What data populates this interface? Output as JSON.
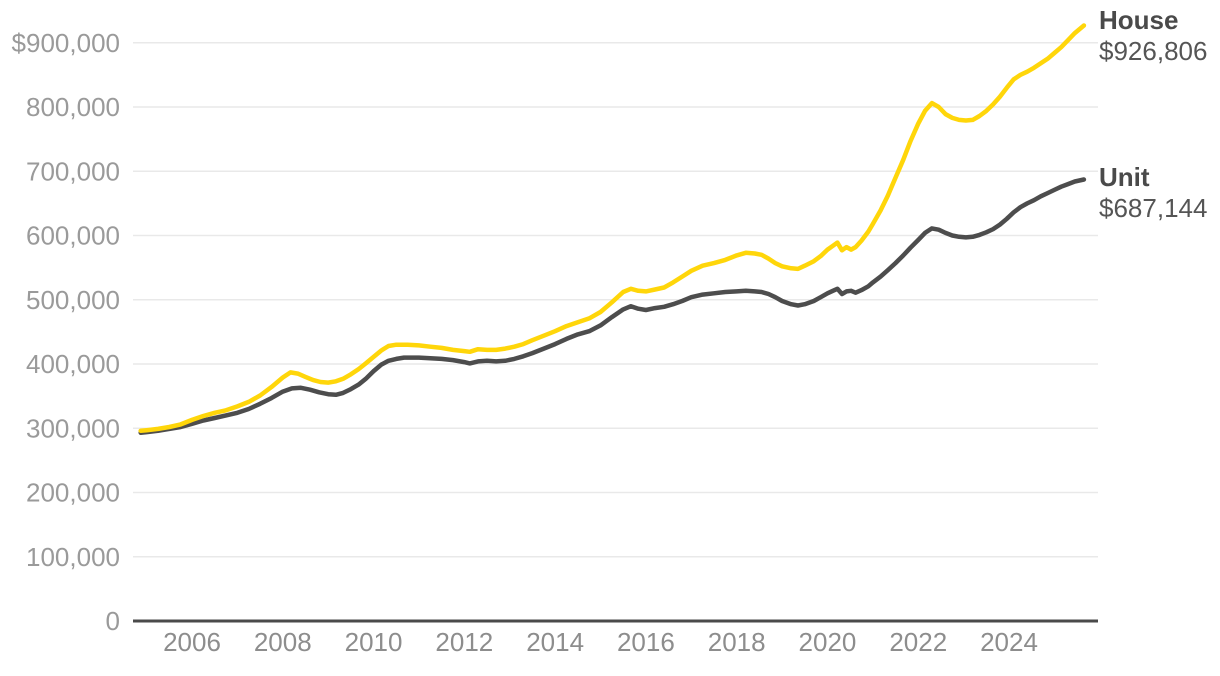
{
  "chart": {
    "colors": {
      "house_line": "#ffd60a",
      "unit_line": "#4d4d4d",
      "gridline": "#e9e9e9",
      "axis_line": "#4a4a4a",
      "y_tick_text": "#9a9a9a",
      "x_tick_text": "#8d8d8d",
      "legend_text": "#4d4d4d",
      "background": "#ffffff"
    },
    "legend": {
      "house_name": "House",
      "house_value": "$926,806",
      "unit_name": "Unit",
      "unit_value": "$687,144"
    }
  },
  "chart_data": {
    "type": "line",
    "title": "",
    "xlabel": "",
    "ylabel": "",
    "grid": "horizontal-only",
    "legend_position": "right-of-line-ends",
    "x_axis": {
      "range": [
        2004.87,
        2025.75
      ],
      "tick_values": [
        2006,
        2008,
        2010,
        2012,
        2014,
        2016,
        2018,
        2020,
        2022,
        2024
      ],
      "tick_labels": [
        "2006",
        "2008",
        "2010",
        "2012",
        "2014",
        "2016",
        "2018",
        "2020",
        "2022",
        "2024"
      ]
    },
    "y_axis": {
      "range": [
        0,
        940000
      ],
      "tick_values": [
        0,
        100000,
        200000,
        300000,
        400000,
        500000,
        600000,
        700000,
        800000,
        900000
      ],
      "tick_labels": [
        "0",
        "100,000",
        "200,000",
        "300,000",
        "400,000",
        "500,000",
        "600,000",
        "700,000",
        "800,000",
        "$900,000"
      ]
    },
    "series": [
      {
        "name": "House",
        "end_label": "$926,806",
        "end_value": 926806,
        "color": "#ffd60a",
        "points": [
          [
            2004.87,
            296000
          ],
          [
            2005.0,
            297000
          ],
          [
            2005.25,
            299000
          ],
          [
            2005.5,
            302000
          ],
          [
            2005.75,
            306000
          ],
          [
            2006.0,
            313000
          ],
          [
            2006.25,
            319000
          ],
          [
            2006.5,
            324000
          ],
          [
            2006.75,
            328000
          ],
          [
            2007.0,
            334000
          ],
          [
            2007.25,
            341000
          ],
          [
            2007.5,
            351000
          ],
          [
            2007.75,
            364000
          ],
          [
            2008.0,
            379000
          ],
          [
            2008.17,
            387000
          ],
          [
            2008.33,
            385000
          ],
          [
            2008.5,
            380000
          ],
          [
            2008.67,
            375000
          ],
          [
            2008.83,
            372000
          ],
          [
            2009.0,
            371000
          ],
          [
            2009.17,
            373000
          ],
          [
            2009.33,
            377000
          ],
          [
            2009.5,
            384000
          ],
          [
            2009.67,
            392000
          ],
          [
            2009.83,
            401000
          ],
          [
            2010.0,
            411000
          ],
          [
            2010.17,
            421000
          ],
          [
            2010.33,
            428000
          ],
          [
            2010.5,
            430000
          ],
          [
            2010.75,
            430000
          ],
          [
            2011.0,
            429000
          ],
          [
            2011.25,
            427000
          ],
          [
            2011.5,
            425000
          ],
          [
            2011.75,
            422000
          ],
          [
            2012.0,
            420000
          ],
          [
            2012.12,
            419000
          ],
          [
            2012.3,
            423000
          ],
          [
            2012.5,
            422000
          ],
          [
            2012.7,
            422000
          ],
          [
            2012.9,
            424000
          ],
          [
            2013.1,
            427000
          ],
          [
            2013.3,
            431000
          ],
          [
            2013.5,
            437000
          ],
          [
            2013.75,
            444000
          ],
          [
            2014.0,
            451000
          ],
          [
            2014.25,
            459000
          ],
          [
            2014.5,
            465000
          ],
          [
            2014.75,
            471000
          ],
          [
            2015.0,
            481000
          ],
          [
            2015.25,
            496000
          ],
          [
            2015.5,
            512000
          ],
          [
            2015.67,
            517000
          ],
          [
            2015.83,
            514000
          ],
          [
            2016.0,
            513000
          ],
          [
            2016.2,
            516000
          ],
          [
            2016.4,
            519000
          ],
          [
            2016.6,
            527000
          ],
          [
            2016.8,
            536000
          ],
          [
            2017.0,
            545000
          ],
          [
            2017.25,
            553000
          ],
          [
            2017.5,
            557000
          ],
          [
            2017.75,
            562000
          ],
          [
            2018.0,
            569000
          ],
          [
            2018.2,
            573000
          ],
          [
            2018.4,
            572000
          ],
          [
            2018.55,
            570000
          ],
          [
            2018.7,
            564000
          ],
          [
            2018.85,
            557000
          ],
          [
            2019.0,
            552000
          ],
          [
            2019.2,
            549000
          ],
          [
            2019.35,
            548000
          ],
          [
            2019.5,
            553000
          ],
          [
            2019.7,
            560000
          ],
          [
            2019.85,
            568000
          ],
          [
            2020.0,
            578000
          ],
          [
            2020.12,
            584000
          ],
          [
            2020.22,
            589000
          ],
          [
            2020.32,
            577000
          ],
          [
            2020.42,
            582000
          ],
          [
            2020.52,
            578000
          ],
          [
            2020.62,
            582000
          ],
          [
            2020.75,
            592000
          ],
          [
            2020.9,
            606000
          ],
          [
            2021.0,
            618000
          ],
          [
            2021.17,
            639000
          ],
          [
            2021.33,
            662000
          ],
          [
            2021.5,
            690000
          ],
          [
            2021.67,
            718000
          ],
          [
            2021.83,
            747000
          ],
          [
            2022.0,
            774000
          ],
          [
            2022.15,
            794000
          ],
          [
            2022.3,
            806000
          ],
          [
            2022.45,
            800000
          ],
          [
            2022.6,
            789000
          ],
          [
            2022.75,
            783000
          ],
          [
            2022.9,
            780000
          ],
          [
            2023.05,
            779000
          ],
          [
            2023.2,
            780000
          ],
          [
            2023.35,
            786000
          ],
          [
            2023.5,
            794000
          ],
          [
            2023.65,
            804000
          ],
          [
            2023.8,
            816000
          ],
          [
            2023.95,
            830000
          ],
          [
            2024.1,
            843000
          ],
          [
            2024.25,
            850000
          ],
          [
            2024.4,
            855000
          ],
          [
            2024.55,
            861000
          ],
          [
            2024.7,
            868000
          ],
          [
            2024.85,
            875000
          ],
          [
            2025.0,
            884000
          ],
          [
            2025.15,
            893000
          ],
          [
            2025.3,
            904000
          ],
          [
            2025.45,
            915000
          ],
          [
            2025.65,
            926806
          ]
        ]
      },
      {
        "name": "Unit",
        "end_label": "$687,144",
        "end_value": 687144,
        "color": "#4d4d4d",
        "points": [
          [
            2004.87,
            293000
          ],
          [
            2005.0,
            294000
          ],
          [
            2005.25,
            296000
          ],
          [
            2005.5,
            299000
          ],
          [
            2005.75,
            302000
          ],
          [
            2006.0,
            307000
          ],
          [
            2006.25,
            312000
          ],
          [
            2006.5,
            316000
          ],
          [
            2006.75,
            320000
          ],
          [
            2007.0,
            324000
          ],
          [
            2007.25,
            330000
          ],
          [
            2007.5,
            338000
          ],
          [
            2007.75,
            347000
          ],
          [
            2008.0,
            357000
          ],
          [
            2008.2,
            362000
          ],
          [
            2008.4,
            363000
          ],
          [
            2008.6,
            360000
          ],
          [
            2008.8,
            356000
          ],
          [
            2009.0,
            353000
          ],
          [
            2009.17,
            352000
          ],
          [
            2009.33,
            355000
          ],
          [
            2009.5,
            361000
          ],
          [
            2009.67,
            368000
          ],
          [
            2009.83,
            377000
          ],
          [
            2010.0,
            389000
          ],
          [
            2010.17,
            399000
          ],
          [
            2010.33,
            405000
          ],
          [
            2010.5,
            408000
          ],
          [
            2010.67,
            410000
          ],
          [
            2010.83,
            410000
          ],
          [
            2011.0,
            410000
          ],
          [
            2011.25,
            409000
          ],
          [
            2011.5,
            408000
          ],
          [
            2011.75,
            406000
          ],
          [
            2012.0,
            403000
          ],
          [
            2012.12,
            401000
          ],
          [
            2012.3,
            404000
          ],
          [
            2012.5,
            405000
          ],
          [
            2012.7,
            404000
          ],
          [
            2012.9,
            405000
          ],
          [
            2013.1,
            408000
          ],
          [
            2013.3,
            412000
          ],
          [
            2013.5,
            417000
          ],
          [
            2013.75,
            424000
          ],
          [
            2014.0,
            431000
          ],
          [
            2014.25,
            439000
          ],
          [
            2014.5,
            446000
          ],
          [
            2014.75,
            451000
          ],
          [
            2015.0,
            460000
          ],
          [
            2015.25,
            473000
          ],
          [
            2015.5,
            485000
          ],
          [
            2015.67,
            490000
          ],
          [
            2015.83,
            486000
          ],
          [
            2016.0,
            484000
          ],
          [
            2016.2,
            487000
          ],
          [
            2016.4,
            489000
          ],
          [
            2016.6,
            493000
          ],
          [
            2016.8,
            498000
          ],
          [
            2017.0,
            504000
          ],
          [
            2017.25,
            508000
          ],
          [
            2017.5,
            510000
          ],
          [
            2017.75,
            512000
          ],
          [
            2018.0,
            513000
          ],
          [
            2018.2,
            514000
          ],
          [
            2018.4,
            513000
          ],
          [
            2018.55,
            512000
          ],
          [
            2018.7,
            509000
          ],
          [
            2018.85,
            504000
          ],
          [
            2019.0,
            498000
          ],
          [
            2019.2,
            493000
          ],
          [
            2019.35,
            491000
          ],
          [
            2019.5,
            493000
          ],
          [
            2019.7,
            498000
          ],
          [
            2019.85,
            504000
          ],
          [
            2020.0,
            510000
          ],
          [
            2020.12,
            514000
          ],
          [
            2020.22,
            517000
          ],
          [
            2020.32,
            509000
          ],
          [
            2020.42,
            513000
          ],
          [
            2020.52,
            514000
          ],
          [
            2020.62,
            511000
          ],
          [
            2020.75,
            515000
          ],
          [
            2020.9,
            521000
          ],
          [
            2021.0,
            527000
          ],
          [
            2021.17,
            536000
          ],
          [
            2021.33,
            546000
          ],
          [
            2021.5,
            557000
          ],
          [
            2021.67,
            569000
          ],
          [
            2021.83,
            581000
          ],
          [
            2022.0,
            593000
          ],
          [
            2022.15,
            604000
          ],
          [
            2022.3,
            611000
          ],
          [
            2022.45,
            609000
          ],
          [
            2022.6,
            604000
          ],
          [
            2022.75,
            600000
          ],
          [
            2022.9,
            598000
          ],
          [
            2023.05,
            597000
          ],
          [
            2023.2,
            598000
          ],
          [
            2023.35,
            601000
          ],
          [
            2023.5,
            605000
          ],
          [
            2023.65,
            610000
          ],
          [
            2023.8,
            617000
          ],
          [
            2023.95,
            626000
          ],
          [
            2024.1,
            636000
          ],
          [
            2024.25,
            644000
          ],
          [
            2024.4,
            650000
          ],
          [
            2024.55,
            655000
          ],
          [
            2024.7,
            661000
          ],
          [
            2024.85,
            666000
          ],
          [
            2025.0,
            671000
          ],
          [
            2025.15,
            676000
          ],
          [
            2025.3,
            680000
          ],
          [
            2025.45,
            684000
          ],
          [
            2025.65,
            687144
          ]
        ]
      }
    ]
  }
}
